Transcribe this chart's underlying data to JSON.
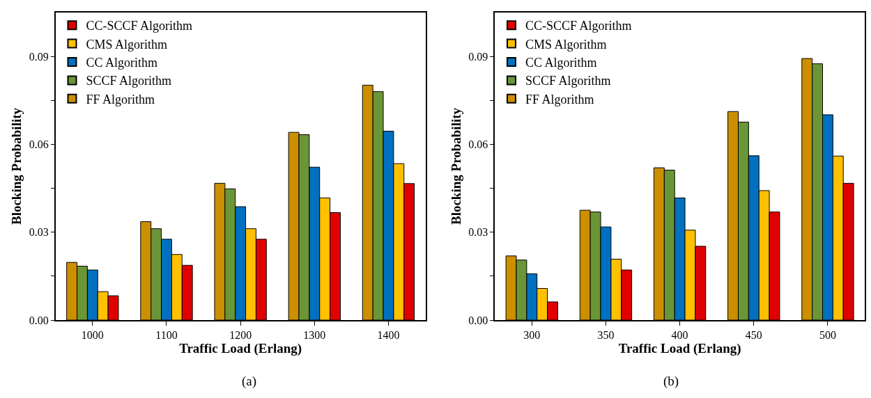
{
  "chart_data": [
    {
      "type": "bar",
      "xlabel": "Traffic Load (Erlang)",
      "ylabel": "Blocking Probability",
      "annotations": [
        "(a)"
      ],
      "categories": [
        "1000",
        "1100",
        "1200",
        "1300",
        "1400"
      ],
      "series": [
        {
          "name": "FF Algorithm",
          "color": "#cc8f00",
          "values": [
            0.0197,
            0.0336,
            0.0467,
            0.0641,
            0.0802
          ]
        },
        {
          "name": "SCCF Algorithm",
          "color": "#6a9637",
          "values": [
            0.0184,
            0.0312,
            0.0448,
            0.0633,
            0.078
          ]
        },
        {
          "name": "CC Algorithm",
          "color": "#0070c0",
          "values": [
            0.0171,
            0.0276,
            0.0387,
            0.0522,
            0.0645
          ]
        },
        {
          "name": "CMS Algorithm",
          "color": "#ffc000",
          "values": [
            0.0097,
            0.0224,
            0.0312,
            0.0417,
            0.0534
          ]
        },
        {
          "name": "CC-SCCF Algorithm",
          "color": "#e00000",
          "values": [
            0.0083,
            0.0187,
            0.0276,
            0.0367,
            0.0466
          ]
        }
      ],
      "ylim": [
        0,
        0.105
      ],
      "yticks": [
        {
          "value": 0,
          "label": "0.00"
        },
        {
          "value": 0.015,
          "label": null
        },
        {
          "value": 0.03,
          "label": "0.03"
        },
        {
          "value": 0.045,
          "label": null
        },
        {
          "value": 0.06,
          "label": "0.06"
        },
        {
          "value": 0.075,
          "label": null
        },
        {
          "value": 0.09,
          "label": "0.09"
        }
      ],
      "legend": "top left"
    },
    {
      "type": "bar",
      "xlabel": "Traffic Load (Erlang)",
      "ylabel": "Blocking Probability",
      "annotations": [
        "(b)"
      ],
      "categories": [
        "300",
        "350",
        "400",
        "450",
        "500"
      ],
      "series": [
        {
          "name": "FF Algorithm",
          "color": "#cc8f00",
          "values": [
            0.0219,
            0.0375,
            0.052,
            0.0712,
            0.0893
          ]
        },
        {
          "name": "SCCF Algorithm",
          "color": "#6a9637",
          "values": [
            0.0205,
            0.0369,
            0.0512,
            0.0676,
            0.0875
          ]
        },
        {
          "name": "CC Algorithm",
          "color": "#0070c0",
          "values": [
            0.0158,
            0.0318,
            0.0417,
            0.0561,
            0.0701
          ]
        },
        {
          "name": "CMS Algorithm",
          "color": "#ffc000",
          "values": [
            0.0108,
            0.0208,
            0.0307,
            0.0442,
            0.056
          ]
        },
        {
          "name": "CC-SCCF Algorithm",
          "color": "#e00000",
          "values": [
            0.0062,
            0.0171,
            0.0252,
            0.0369,
            0.0467
          ]
        }
      ],
      "ylim": [
        0,
        0.105
      ],
      "yticks": [
        {
          "value": 0,
          "label": "0.00"
        },
        {
          "value": 0.015,
          "label": null
        },
        {
          "value": 0.03,
          "label": "0.03"
        },
        {
          "value": 0.045,
          "label": null
        },
        {
          "value": 0.06,
          "label": "0.06"
        },
        {
          "value": 0.075,
          "label": null
        },
        {
          "value": 0.09,
          "label": "0.09"
        }
      ],
      "legend": "top left"
    }
  ]
}
